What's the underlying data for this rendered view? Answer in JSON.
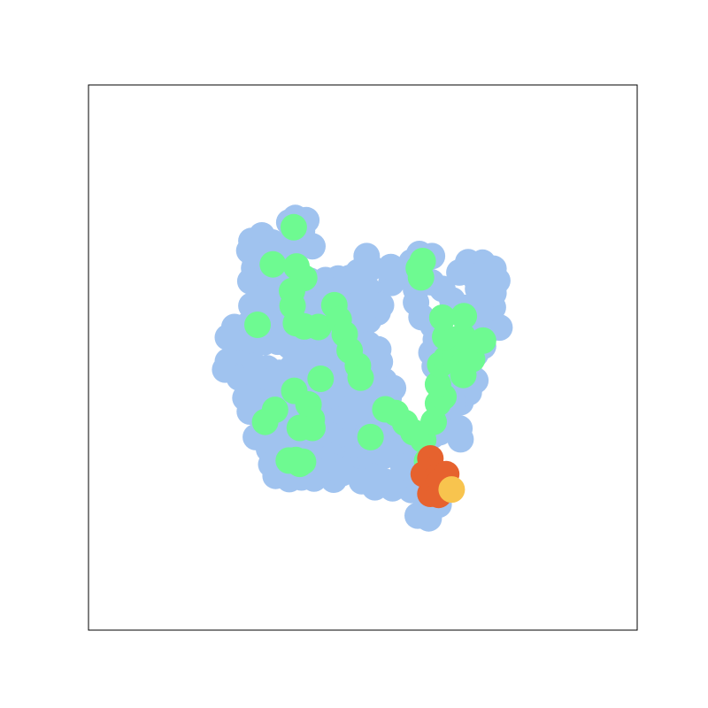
{
  "chart_data": {
    "type": "scatter",
    "title": "",
    "xlabel": "",
    "ylabel": "",
    "grid": false,
    "legend": "none",
    "axis_ticks": "hidden",
    "xlim": [
      0,
      100
    ],
    "ylim": [
      0,
      100
    ],
    "series": [
      {
        "color": "#a0c3ef",
        "points": [
          [
            36.6,
            74.8
          ],
          [
            37.7,
            75.6
          ],
          [
            39.7,
            75.2
          ],
          [
            38.9,
            73.2
          ],
          [
            31.6,
            72.4
          ],
          [
            29.7,
            71.4
          ],
          [
            33.5,
            71.1
          ],
          [
            36.1,
            70.6
          ],
          [
            38.9,
            71.3
          ],
          [
            40.8,
            70.4
          ],
          [
            29.3,
            69.6
          ],
          [
            31.2,
            68.8
          ],
          [
            33.7,
            68.6
          ],
          [
            36.2,
            69.6
          ],
          [
            30.4,
            67.5
          ],
          [
            33.6,
            66.6
          ],
          [
            36.1,
            67.1
          ],
          [
            30.2,
            66.4
          ],
          [
            29.5,
            64.0
          ],
          [
            32.2,
            64.2
          ],
          [
            34.4,
            63.1
          ],
          [
            36.6,
            63.7
          ],
          [
            40.3,
            64.1
          ],
          [
            43.2,
            64.2
          ],
          [
            45.5,
            64.5
          ],
          [
            47.6,
            64.6
          ],
          [
            49.4,
            64.5
          ],
          [
            50.8,
            62.6
          ],
          [
            47.3,
            62.9
          ],
          [
            44.7,
            62.3
          ],
          [
            41.9,
            61.9
          ],
          [
            39.5,
            60.6
          ],
          [
            37.4,
            60.0
          ],
          [
            34.6,
            61.1
          ],
          [
            32.0,
            61.1
          ],
          [
            29.7,
            59.5
          ],
          [
            31.9,
            58.6
          ],
          [
            34.7,
            58.1
          ],
          [
            37.5,
            58.2
          ],
          [
            40.4,
            58.7
          ],
          [
            42.9,
            59.2
          ],
          [
            45.0,
            58.8
          ],
          [
            47.3,
            59.4
          ],
          [
            49.2,
            59.7
          ],
          [
            51.7,
            60.3
          ],
          [
            52.7,
            58.3
          ],
          [
            51.0,
            56.8
          ],
          [
            48.7,
            56.0
          ],
          [
            46.5,
            55.3
          ],
          [
            43.9,
            55.9
          ],
          [
            40.9,
            56.1
          ],
          [
            38.8,
            55.5
          ],
          [
            36.1,
            55.4
          ],
          [
            33.8,
            55.9
          ],
          [
            31.5,
            55.0
          ],
          [
            29.0,
            55.9
          ],
          [
            26.6,
            55.6
          ],
          [
            25.4,
            53.7
          ],
          [
            27.3,
            52.5
          ],
          [
            29.7,
            52.0
          ],
          [
            32.0,
            52.8
          ],
          [
            34.5,
            52.9
          ],
          [
            36.7,
            52.1
          ],
          [
            39.1,
            51.8
          ],
          [
            41.5,
            52.3
          ],
          [
            43.9,
            51.5
          ],
          [
            46.1,
            51.8
          ],
          [
            48.6,
            52.1
          ],
          [
            51.0,
            52.4
          ],
          [
            52.8,
            51.5
          ],
          [
            53.1,
            49.2
          ],
          [
            50.4,
            48.9
          ],
          [
            48.4,
            48.6
          ],
          [
            46.3,
            47.4
          ],
          [
            43.9,
            47.8
          ],
          [
            41.3,
            48.4
          ],
          [
            39.3,
            47.8
          ],
          [
            37.2,
            48.3
          ],
          [
            34.8,
            47.2
          ],
          [
            32.6,
            48.0
          ],
          [
            30.2,
            48.5
          ],
          [
            27.5,
            48.8
          ],
          [
            25.4,
            49.3
          ],
          [
            24.9,
            47.8
          ],
          [
            27.5,
            46.3
          ],
          [
            29.5,
            46.0
          ],
          [
            32.3,
            45.3
          ],
          [
            34.4,
            44.6
          ],
          [
            37.2,
            44.3
          ],
          [
            39.6,
            44.9
          ],
          [
            41.8,
            44.7
          ],
          [
            44.3,
            45.2
          ],
          [
            46.9,
            45.2
          ],
          [
            49.5,
            45.1
          ],
          [
            51.7,
            44.4
          ],
          [
            53.9,
            45.7
          ],
          [
            55.5,
            44.4
          ],
          [
            54.7,
            42.6
          ],
          [
            52.1,
            42.2
          ],
          [
            49.9,
            41.6
          ],
          [
            47.9,
            41.0
          ],
          [
            45.4,
            40.9
          ],
          [
            43.0,
            41.4
          ],
          [
            40.5,
            41.9
          ],
          [
            38.1,
            42.0
          ],
          [
            35.8,
            41.1
          ],
          [
            33.2,
            41.2
          ],
          [
            30.8,
            41.9
          ],
          [
            28.6,
            42.6
          ],
          [
            29.4,
            40.1
          ],
          [
            31.4,
            39.1
          ],
          [
            33.9,
            38.9
          ],
          [
            36.4,
            38.2
          ],
          [
            38.5,
            39.0
          ],
          [
            41.2,
            38.4
          ],
          [
            43.4,
            37.7
          ],
          [
            45.5,
            38.6
          ],
          [
            47.9,
            38.6
          ],
          [
            50.3,
            38.9
          ],
          [
            52.5,
            38.7
          ],
          [
            54.8,
            39.5
          ],
          [
            56.6,
            38.5
          ],
          [
            57.9,
            37.2
          ],
          [
            55.6,
            36.4
          ],
          [
            53.4,
            36.1
          ],
          [
            51.1,
            35.6
          ],
          [
            48.8,
            35.1
          ],
          [
            46.5,
            35.7
          ],
          [
            44.1,
            35.7
          ],
          [
            41.9,
            34.5
          ],
          [
            39.7,
            34.9
          ],
          [
            37.4,
            35.1
          ],
          [
            35.0,
            35.9
          ],
          [
            32.7,
            35.7
          ],
          [
            30.5,
            35.4
          ],
          [
            32.9,
            33.2
          ],
          [
            35.4,
            32.4
          ],
          [
            37.4,
            33.2
          ],
          [
            39.8,
            32.9
          ],
          [
            42.0,
            31.7
          ],
          [
            44.5,
            31.9
          ],
          [
            46.8,
            31.2
          ],
          [
            49.0,
            31.9
          ],
          [
            51.3,
            32.4
          ],
          [
            53.9,
            32.0
          ],
          [
            56.2,
            32.5
          ],
          [
            58.5,
            32.8
          ],
          [
            60.4,
            31.7
          ],
          [
            62.1,
            30.4
          ],
          [
            63.2,
            28.5
          ],
          [
            62.9,
            26.6
          ],
          [
            61.0,
            25.5
          ],
          [
            58.8,
            25.7
          ],
          [
            56.5,
            26.9
          ],
          [
            54.1,
            27.2
          ],
          [
            51.8,
            28.2
          ],
          [
            49.5,
            28.9
          ],
          [
            47.1,
            29.4
          ],
          [
            44.6,
            29.9
          ],
          [
            42.4,
            30.2
          ],
          [
            40.3,
            30.5
          ],
          [
            37.9,
            30.6
          ],
          [
            35.6,
            29.9
          ],
          [
            33.3,
            30.4
          ],
          [
            34.1,
            28.3
          ],
          [
            36.6,
            27.7
          ],
          [
            38.8,
            28.0
          ],
          [
            41.1,
            27.8
          ],
          [
            44.7,
            27.6
          ],
          [
            46.2,
            28.8
          ],
          [
            49.8,
            27.3
          ],
          [
            52.2,
            26.2
          ],
          [
            55.4,
            26.0
          ],
          [
            59.2,
            25.9
          ],
          [
            61.3,
            25.5
          ],
          [
            62.6,
            24.4
          ],
          [
            61.6,
            23.2
          ],
          [
            63.8,
            23.0
          ],
          [
            60.0,
            21.0
          ],
          [
            62.0,
            20.5
          ],
          [
            60.2,
            27.1
          ],
          [
            57.4,
            29.9
          ],
          [
            60.0,
            33.6
          ],
          [
            62.6,
            35.6
          ],
          [
            64.0,
            38.5
          ],
          [
            65.6,
            40.4
          ],
          [
            67.8,
            41.8
          ],
          [
            69.3,
            43.6
          ],
          [
            70.5,
            45.8
          ],
          [
            69.3,
            48.2
          ],
          [
            70.5,
            50.6
          ],
          [
            71.9,
            52.1
          ],
          [
            70.6,
            54.5
          ],
          [
            71.7,
            56.5
          ],
          [
            74.9,
            55.5
          ],
          [
            72.8,
            56.6
          ],
          [
            73.7,
            59.2
          ],
          [
            73.8,
            61.8
          ],
          [
            74.5,
            64.1
          ],
          [
            73.8,
            66.3
          ],
          [
            71.8,
            67.4
          ],
          [
            69.2,
            67.5
          ],
          [
            67.6,
            65.6
          ],
          [
            70.3,
            64.9
          ],
          [
            71.0,
            62.6
          ],
          [
            70.9,
            60.4
          ],
          [
            68.4,
            59.1
          ],
          [
            66.3,
            60.5
          ],
          [
            64.5,
            62.6
          ],
          [
            62.5,
            63.8
          ],
          [
            60.7,
            64.1
          ],
          [
            59.7,
            62.5
          ],
          [
            59.7,
            60.1
          ],
          [
            60.7,
            57.4
          ],
          [
            62.8,
            55.8
          ],
          [
            63.3,
            53.3
          ],
          [
            62.5,
            50.9
          ],
          [
            63.1,
            48.4
          ],
          [
            64.1,
            46.1
          ],
          [
            66.0,
            44.2
          ],
          [
            66.4,
            41.8
          ],
          [
            65.1,
            39.6
          ],
          [
            64.0,
            36.3
          ],
          [
            67.6,
            37.0
          ],
          [
            67.8,
            35.0
          ],
          [
            63.1,
            37.1
          ],
          [
            59.4,
            65.1
          ],
          [
            60.5,
            67.1
          ],
          [
            62.6,
            68.6
          ],
          [
            60.3,
            69.0
          ],
          [
            58.9,
            67.5
          ],
          [
            55.2,
            63.7
          ],
          [
            55.1,
            66.6
          ],
          [
            50.7,
            68.6
          ],
          [
            51.5,
            66.5
          ],
          [
            52.5,
            61.4
          ],
          [
            53.3,
            59.6
          ],
          [
            49.2,
            65.7
          ]
        ]
      },
      {
        "color": "#6efa91",
        "points": [
          [
            37.4,
            73.9
          ],
          [
            33.6,
            67.1
          ],
          [
            37.9,
            66.7
          ],
          [
            39.3,
            64.6
          ],
          [
            37.1,
            62.2
          ],
          [
            37.2,
            59.5
          ],
          [
            37.8,
            56.3
          ],
          [
            39.3,
            55.7
          ],
          [
            41.9,
            55.6
          ],
          [
            44.8,
            59.6
          ],
          [
            45.6,
            57.0
          ],
          [
            46.7,
            54.3
          ],
          [
            47.6,
            51.3
          ],
          [
            49.1,
            48.5
          ],
          [
            49.6,
            46.3
          ],
          [
            42.3,
            46.1
          ],
          [
            30.8,
            56.0
          ],
          [
            37.5,
            43.9
          ],
          [
            34.0,
            40.4
          ],
          [
            32.2,
            38.2
          ],
          [
            40.1,
            41.4
          ],
          [
            40.7,
            38.7
          ],
          [
            40.8,
            37.1
          ],
          [
            38.5,
            37.1
          ],
          [
            51.4,
            35.4
          ],
          [
            54.1,
            40.5
          ],
          [
            56.0,
            39.8
          ],
          [
            57.7,
            38.0
          ],
          [
            59.2,
            36.3
          ],
          [
            61.0,
            34.9
          ],
          [
            61.7,
            31.0
          ],
          [
            62.9,
            38.2
          ],
          [
            63.7,
            41.6
          ],
          [
            64.7,
            42.8
          ],
          [
            63.7,
            45.1
          ],
          [
            64.1,
            48.7
          ],
          [
            65.2,
            49.8
          ],
          [
            66.8,
            49.7
          ],
          [
            68.1,
            48.5
          ],
          [
            69.9,
            49.7
          ],
          [
            68.3,
            46.8
          ],
          [
            68.2,
            53.9
          ],
          [
            65.0,
            53.8
          ],
          [
            71.9,
            53.1
          ],
          [
            68.4,
            57.6
          ],
          [
            64.5,
            57.3
          ],
          [
            60.6,
            64.7
          ],
          [
            60.2,
            66.4
          ],
          [
            60.9,
            67.7
          ],
          [
            37.8,
            31.2
          ],
          [
            38.5,
            30.5
          ],
          [
            36.5,
            31.1
          ],
          [
            39.1,
            30.9
          ]
        ]
      },
      {
        "color": "#e6622e",
        "points": [
          [
            62.3,
            31.5
          ],
          [
            62.8,
            29.4
          ],
          [
            61.1,
            28.6
          ],
          [
            63.6,
            28.2
          ],
          [
            65.2,
            28.6
          ],
          [
            63.7,
            26.7
          ],
          [
            65.1,
            25.9
          ],
          [
            62.3,
            25.0
          ],
          [
            63.8,
            24.8
          ],
          [
            64.2,
            27.4
          ]
        ]
      },
      {
        "color": "#f8c44e",
        "points": [
          [
            66.2,
            25.8
          ]
        ]
      }
    ]
  }
}
